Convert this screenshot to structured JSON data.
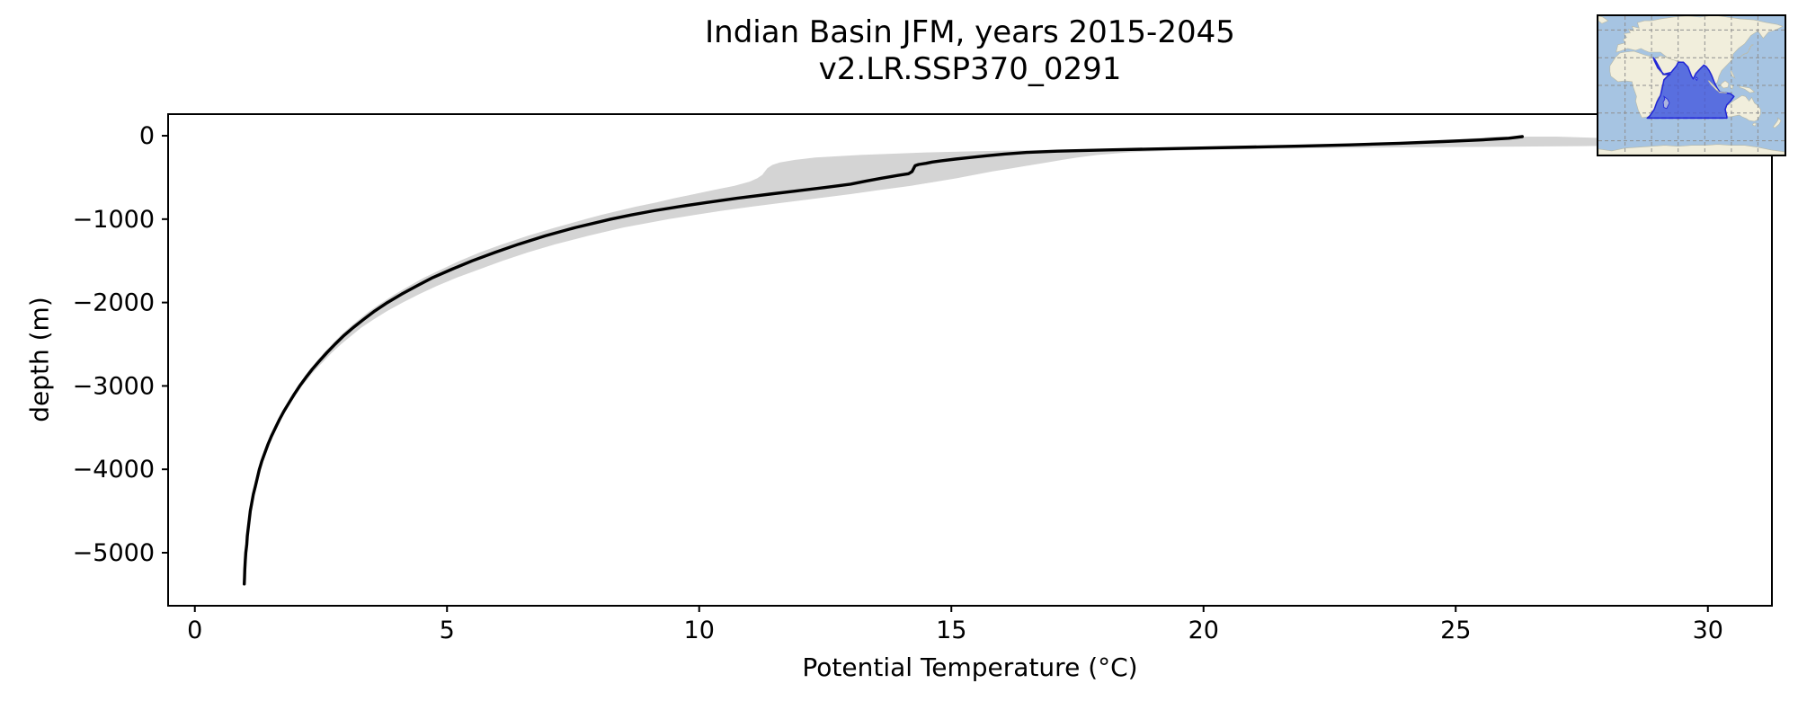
{
  "figure": {
    "title_line1": "Indian Basin JFM, years 2015-2045",
    "title_line2": "v2.LR.SSP370_0291",
    "xlabel": "Potential Temperature (°C)",
    "ylabel": "depth (m)",
    "background_color": "#ffffff"
  },
  "chart_data": {
    "type": "line",
    "title": "Indian Basin JFM, years 2015-2045\nv2.LR.SSP370_0291",
    "xlabel": "Potential Temperature (°C)",
    "ylabel": "depth (m)",
    "xlim": [
      -0.53,
      31.27
    ],
    "ylim": [
      -5636,
      259
    ],
    "x_ticks": [
      0,
      5,
      10,
      15,
      20,
      25,
      30
    ],
    "x_tick_labels": [
      "0",
      "5",
      "10",
      "15",
      "20",
      "25",
      "30"
    ],
    "y_ticks": [
      0,
      -1000,
      -2000,
      -3000,
      -4000,
      -5000
    ],
    "y_tick_labels": [
      "0",
      "−1000",
      "−2000",
      "−3000",
      "−4000",
      "−5000"
    ],
    "grid": false,
    "legend": "none",
    "line_color": "#000000",
    "line_width": 3.4,
    "band_color": "#d4d4d4",
    "series": [
      {
        "name": "mean potential temperature profile",
        "format": "points are [temp_c, depth_m]",
        "points": [
          [
            26.32,
            -10
          ],
          [
            26.05,
            -30
          ],
          [
            25.5,
            -50
          ],
          [
            24.75,
            -70
          ],
          [
            23.9,
            -90
          ],
          [
            22.9,
            -110
          ],
          [
            21.9,
            -125
          ],
          [
            20.6,
            -140
          ],
          [
            19.3,
            -155
          ],
          [
            18.1,
            -170
          ],
          [
            17.1,
            -185
          ],
          [
            16.5,
            -200
          ],
          [
            16.05,
            -220
          ],
          [
            15.7,
            -240
          ],
          [
            15.38,
            -260
          ],
          [
            15.08,
            -280
          ],
          [
            14.8,
            -300
          ],
          [
            14.62,
            -315
          ],
          [
            14.5,
            -330
          ],
          [
            14.35,
            -345
          ],
          [
            14.28,
            -360
          ],
          [
            14.25,
            -395
          ],
          [
            14.22,
            -430
          ],
          [
            14.15,
            -455
          ],
          [
            13.95,
            -475
          ],
          [
            13.6,
            -510
          ],
          [
            13.3,
            -545
          ],
          [
            13.0,
            -580
          ],
          [
            12.5,
            -620
          ],
          [
            11.95,
            -660
          ],
          [
            11.4,
            -700
          ],
          [
            10.75,
            -750
          ],
          [
            10.15,
            -800
          ],
          [
            9.6,
            -850
          ],
          [
            9.1,
            -900
          ],
          [
            8.65,
            -950
          ],
          [
            8.25,
            -1000
          ],
          [
            7.55,
            -1100
          ],
          [
            6.95,
            -1200
          ],
          [
            6.42,
            -1300
          ],
          [
            5.95,
            -1400
          ],
          [
            5.5,
            -1500
          ],
          [
            5.1,
            -1600
          ],
          [
            4.72,
            -1700
          ],
          [
            4.4,
            -1800
          ],
          [
            4.1,
            -1900
          ],
          [
            3.82,
            -2000
          ],
          [
            3.57,
            -2100
          ],
          [
            3.35,
            -2200
          ],
          [
            3.14,
            -2300
          ],
          [
            2.95,
            -2400
          ],
          [
            2.78,
            -2500
          ],
          [
            2.62,
            -2600
          ],
          [
            2.47,
            -2700
          ],
          [
            2.33,
            -2800
          ],
          [
            2.2,
            -2900
          ],
          [
            2.08,
            -3000
          ],
          [
            1.97,
            -3100
          ],
          [
            1.87,
            -3200
          ],
          [
            1.77,
            -3300
          ],
          [
            1.68,
            -3400
          ],
          [
            1.6,
            -3500
          ],
          [
            1.52,
            -3600
          ],
          [
            1.45,
            -3700
          ],
          [
            1.39,
            -3800
          ],
          [
            1.33,
            -3900
          ],
          [
            1.28,
            -4000
          ],
          [
            1.24,
            -4100
          ],
          [
            1.2,
            -4200
          ],
          [
            1.16,
            -4300
          ],
          [
            1.13,
            -4400
          ],
          [
            1.1,
            -4500
          ],
          [
            1.08,
            -4600
          ],
          [
            1.06,
            -4700
          ],
          [
            1.04,
            -4800
          ],
          [
            1.03,
            -4900
          ],
          [
            1.01,
            -5000
          ],
          [
            1.0,
            -5100
          ],
          [
            0.99,
            -5200
          ],
          [
            0.985,
            -5300
          ],
          [
            0.98,
            -5375
          ]
        ]
      }
    ],
    "band": {
      "name": "spatial spread envelope",
      "format": "points are [depth_m, temp_min_c, temp_max_c]",
      "points": [
        [
          -10,
          25.8,
          27.0
        ],
        [
          -30,
          25.4,
          28.0
        ],
        [
          -50,
          24.9,
          29.8
        ],
        [
          -70,
          24.2,
          30.7
        ],
        [
          -90,
          23.3,
          30.8
        ],
        [
          -110,
          22.2,
          30.4
        ],
        [
          -125,
          21.1,
          27.5
        ],
        [
          -140,
          19.7,
          23.8
        ],
        [
          -155,
          18.3,
          21.5
        ],
        [
          -170,
          16.9,
          20.0
        ],
        [
          -185,
          15.5,
          19.1
        ],
        [
          -200,
          14.5,
          18.5
        ],
        [
          -230,
          13.2,
          17.9
        ],
        [
          -260,
          12.3,
          17.5
        ],
        [
          -290,
          11.9,
          17.2
        ],
        [
          -320,
          11.6,
          16.9
        ],
        [
          -350,
          11.45,
          16.6
        ],
        [
          -390,
          11.35,
          16.2
        ],
        [
          -430,
          11.3,
          15.8
        ],
        [
          -470,
          11.25,
          15.45
        ],
        [
          -510,
          11.15,
          15.1
        ],
        [
          -550,
          11.0,
          14.7
        ],
        [
          -600,
          10.7,
          14.2
        ],
        [
          -650,
          10.3,
          13.6
        ],
        [
          -700,
          9.9,
          13.0
        ],
        [
          -750,
          9.5,
          12.35
        ],
        [
          -800,
          9.15,
          11.7
        ],
        [
          -850,
          8.75,
          11.05
        ],
        [
          -900,
          8.4,
          10.45
        ],
        [
          -950,
          8.05,
          9.9
        ],
        [
          -1000,
          7.75,
          9.4
        ],
        [
          -1100,
          7.15,
          8.5
        ],
        [
          -1200,
          6.6,
          7.8
        ],
        [
          -1300,
          6.1,
          7.15
        ],
        [
          -1400,
          5.65,
          6.6
        ],
        [
          -1500,
          5.25,
          6.1
        ],
        [
          -1600,
          4.9,
          5.65
        ],
        [
          -1700,
          4.55,
          5.2
        ],
        [
          -1800,
          4.25,
          4.8
        ],
        [
          -1900,
          3.97,
          4.45
        ],
        [
          -2000,
          3.71,
          4.12
        ],
        [
          -2100,
          3.47,
          3.82
        ],
        [
          -2200,
          3.26,
          3.55
        ],
        [
          -2300,
          3.06,
          3.3
        ],
        [
          -2400,
          2.88,
          3.1
        ],
        [
          -2500,
          2.72,
          2.9
        ],
        [
          -2600,
          2.56,
          2.72
        ],
        [
          -2700,
          2.42,
          2.56
        ],
        [
          -2800,
          2.28,
          2.4
        ],
        [
          -2900,
          2.16,
          2.26
        ],
        [
          -3000,
          2.04,
          2.13
        ],
        [
          -3100,
          1.94,
          2.01
        ],
        [
          -3200,
          1.84,
          1.9
        ],
        [
          -3300,
          1.74,
          1.8
        ],
        [
          -3400,
          1.66,
          1.71
        ],
        [
          -3500,
          1.58,
          1.62
        ],
        [
          -3600,
          1.5,
          1.54
        ],
        [
          -3700,
          1.43,
          1.47
        ],
        [
          -3800,
          1.37,
          1.41
        ],
        [
          -3900,
          1.31,
          1.35
        ],
        [
          -4000,
          1.27,
          1.3
        ]
      ]
    }
  },
  "inset_map": {
    "name": "Indian Ocean basin locator map",
    "ocean_color": "#a6c4e2",
    "land_color": "#f1eedc",
    "coast_color": "#b9b9a6",
    "gridline_color": "#8f8f8f",
    "basin_fill": "#3b4ede",
    "basin_fill_opacity": 0.72,
    "basin_edge": "#2126d6"
  }
}
